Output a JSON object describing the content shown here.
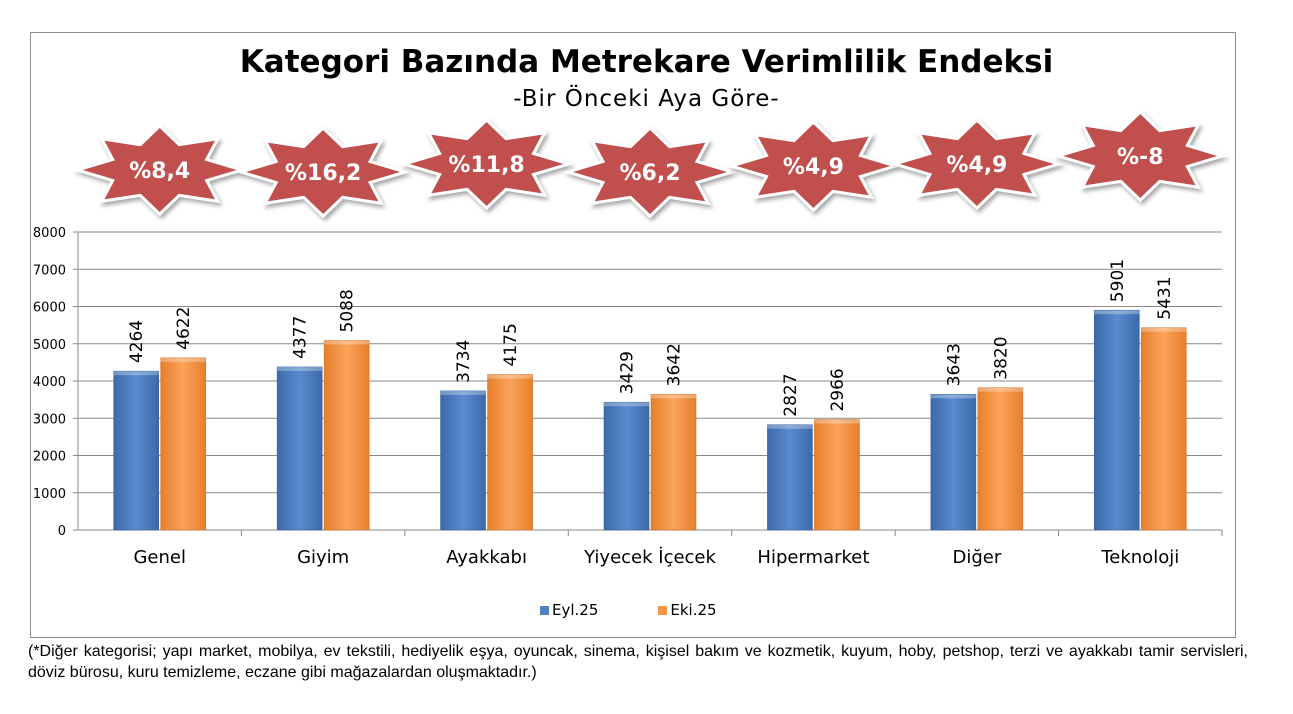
{
  "chart_data": {
    "type": "bar",
    "title": "Kategori Bazında Metrekare Verimlilik Endeksi",
    "subtitle": "-Bir Önceki Aya Göre-",
    "categories": [
      "Genel",
      "Giyim",
      "Ayakkabı",
      "Yiyecek İçecek",
      "Hipermarket",
      "Diğer",
      "Teknoloji"
    ],
    "series": [
      {
        "name": "Eyl.25",
        "color": "#4f81bd",
        "values": [
          4264,
          4377,
          3734,
          3429,
          2827,
          3643,
          5901
        ]
      },
      {
        "name": "Eki.25",
        "color": "#f79646",
        "values": [
          4622,
          5088,
          4175,
          3642,
          2966,
          3820,
          5431
        ]
      }
    ],
    "change_badges": [
      "%8,4",
      "%16,2",
      "%11,8",
      "%6,2",
      "%4,9",
      "%4,9",
      "%-8"
    ],
    "badge_color": "#c0504d",
    "ylim": [
      0,
      8000
    ],
    "yticks": [
      0,
      1000,
      2000,
      3000,
      4000,
      5000,
      6000,
      7000,
      8000
    ],
    "grid": true,
    "legend": "bottom"
  },
  "footnote": "(*Diğer kategorisi; yapı market, mobilya, ev tekstili, hediyelik eşya, oyuncak, sinema, kişisel bakım ve kozmetik, kuyum, hoby, petshop, terzi ve ayakkabı tamir servisleri, döviz bürosu, kuru temizleme, eczane gibi mağazalardan oluşmaktadır.)"
}
